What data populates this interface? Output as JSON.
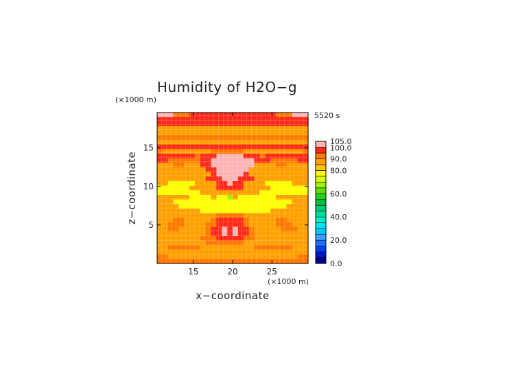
{
  "chart_data": {
    "type": "heatmap",
    "title": "Humidity of H2O−g",
    "xlabel": "x−coordinate",
    "ylabel": "z−coordinate",
    "x_unit": "(×1000 m)",
    "y_unit": "(×1000 m)",
    "time_label": "5520 s",
    "xlim": [
      10.4,
      29.6
    ],
    "ylim": [
      0,
      19.6
    ],
    "x_ticks": [
      15,
      20,
      25
    ],
    "y_ticks": [
      5,
      10,
      15
    ],
    "grid": true,
    "colorbar": {
      "range": [
        0,
        105
      ],
      "labels": [
        "105.0",
        "100.0",
        "90.0",
        "80.0",
        "60.0",
        "40.0",
        "20.0",
        "0.0"
      ],
      "label_values": [
        105,
        100,
        90,
        80,
        60,
        40,
        20,
        0
      ],
      "levels": [
        {
          "from": 0,
          "to": 5,
          "color": "#00008c"
        },
        {
          "from": 5,
          "to": 10,
          "color": "#0018c8"
        },
        {
          "from": 10,
          "to": 15,
          "color": "#0040f0"
        },
        {
          "from": 15,
          "to": 20,
          "color": "#2070ff"
        },
        {
          "from": 20,
          "to": 25,
          "color": "#40a0ff"
        },
        {
          "from": 25,
          "to": 30,
          "color": "#00c8ff"
        },
        {
          "from": 30,
          "to": 35,
          "color": "#00e6f0"
        },
        {
          "from": 35,
          "to": 40,
          "color": "#00f0c8"
        },
        {
          "from": 40,
          "to": 45,
          "color": "#00dca0"
        },
        {
          "from": 45,
          "to": 50,
          "color": "#00d070"
        },
        {
          "from": 50,
          "to": 55,
          "color": "#00c040"
        },
        {
          "from": 55,
          "to": 60,
          "color": "#20d020"
        },
        {
          "from": 60,
          "to": 65,
          "color": "#60e000"
        },
        {
          "from": 65,
          "to": 70,
          "color": "#a0f000"
        },
        {
          "from": 70,
          "to": 75,
          "color": "#d8fa00"
        },
        {
          "from": 75,
          "to": 80,
          "color": "#ffff00"
        },
        {
          "from": 80,
          "to": 85,
          "color": "#ffc400"
        },
        {
          "from": 85,
          "to": 90,
          "color": "#ffa000"
        },
        {
          "from": 90,
          "to": 95,
          "color": "#ff7800"
        },
        {
          "from": 95,
          "to": 100,
          "color": "#ff2a1a"
        },
        {
          "from": 100,
          "to": 105,
          "color": "#ffb4b4"
        }
      ]
    },
    "field": {
      "rows_top_to_bottom": [
        "4442221111111111111111222444",
        "1111111111111111111111111111",
        "1111111111111111111111111111",
        "3333333333333333333333333333",
        "3333333333333333333333333333",
        "2222222222222222222222222222",
        "3333333333333333333333333333",
        "1111111111111111111111111111",
        "2333333333222222333333333332",
        "1111111211144444111211111111",
        "1122222211444444441112222211",
        "3332233311444444443333223333",
        "3333333331144444433333333333",
        "3333333333144444133333333333",
        "3333333331114441113333333333",
        "3366666333311411333366666333",
        "6666663333311111333336666666",
        "6666666633333333333666666666",
        "3333336666366736666666333333",
        "3336666666666666666666666333",
        "3333666666666666666666663333",
        "3333333366666666666663333333",
        "3333333333322222333333333333",
        "3332233333211111233333223333",
        "3322233332211111233333222333",
        "3322333332114141123333322233",
        "3333333332114141123333333333",
        "3333333322211111223333333333",
        "3333333332222222333333333333",
        "3322222233333333332222222333",
        "3333333333333333333333333333",
        "2233333333333333333333333322",
        "2222222222222222222222222222"
      ],
      "code_values": {
        "1": 97,
        "2": 92,
        "3": 87,
        "4": 102,
        "5": 82,
        "6": 77,
        "7": 67
      }
    }
  }
}
